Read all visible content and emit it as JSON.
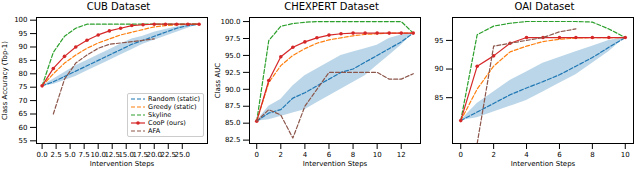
{
  "chart_data": [
    {
      "type": "line",
      "title": "CUB Dataset",
      "x_label": "Intervention Steps",
      "y_label": "Class Accuracy (Top-1)",
      "x": [
        0,
        2,
        4,
        6,
        8,
        10,
        12,
        14,
        16,
        18,
        20,
        22,
        24,
        26,
        28
      ],
      "xlim": [
        -1,
        29.5
      ],
      "xticks": [
        {
          "value": 0,
          "label": "0.0"
        },
        {
          "value": 2.5,
          "label": "2.5"
        },
        {
          "value": 5,
          "label": "5.0"
        },
        {
          "value": 7.5,
          "label": "7.5"
        },
        {
          "value": 10,
          "label": "10.0"
        },
        {
          "value": 12.5,
          "label": "12.5"
        },
        {
          "value": 15,
          "label": "15.0"
        },
        {
          "value": 17.5,
          "label": "17.5"
        },
        {
          "value": 20,
          "label": "20.0"
        },
        {
          "value": 22.5,
          "label": "22.5"
        },
        {
          "value": 25,
          "label": "25.0"
        }
      ],
      "ylim": [
        54,
        101
      ],
      "yticks": [
        55,
        60,
        65,
        70,
        75,
        80,
        85,
        90,
        95,
        100
      ],
      "grid": false,
      "legend": "lower right",
      "series": [
        {
          "name": "Random (static)",
          "color": "#1f77b4",
          "line_style": "dashed",
          "values": [
            75.5,
            77,
            79,
            81,
            83,
            85,
            87,
            89,
            91,
            92.5,
            94,
            95.5,
            97,
            98,
            98.5
          ],
          "lower": [
            75.5,
            76,
            77.5,
            79,
            81,
            83,
            85,
            87,
            89,
            91,
            92.5,
            94,
            95.5,
            97,
            98.5
          ],
          "upper": [
            75.5,
            78,
            80.5,
            83,
            85,
            87,
            89,
            91,
            93,
            94,
            95.5,
            96.5,
            97.5,
            98.3,
            98.5
          ]
        },
        {
          "name": "Greedy (static)",
          "color": "#ff7f0e",
          "line_style": "dashed",
          "values": [
            75.5,
            80,
            84,
            87,
            89.5,
            91.5,
            93,
            94.5,
            95.5,
            96.5,
            97.5,
            98,
            98.3,
            98.5,
            98.5
          ]
        },
        {
          "name": "Skyline",
          "color": "#2ca02c",
          "line_style": "dashed",
          "values": [
            75.5,
            88,
            94,
            97,
            98.5,
            98.5,
            98.5,
            98.5,
            98.5,
            98.5,
            98.5,
            98.5,
            98.5,
            98.5,
            98.5
          ]
        },
        {
          "name": "CooP (ours)",
          "color": "#d62728",
          "line_style": "solid",
          "marker": "circle",
          "values": [
            75.5,
            82,
            86.5,
            90,
            92.5,
            94.5,
            96,
            97,
            98,
            98.3,
            98.5,
            98.5,
            98.5,
            98.5,
            98.5
          ]
        },
        {
          "name": "AFA",
          "color": "#8c564b",
          "line_style": "dashed",
          "values": [
            null,
            65,
            78,
            84,
            87,
            89.5,
            91,
            91.5,
            92,
            92.5,
            93,
            null,
            null,
            null,
            null
          ]
        }
      ]
    },
    {
      "type": "line",
      "title": "CHEXPERT Dataset",
      "x_label": "Intervention Steps",
      "y_label": "Class AUC",
      "x": [
        0,
        1,
        2,
        3,
        4,
        5,
        6,
        7,
        8,
        9,
        10,
        11,
        12,
        13
      ],
      "xlim": [
        -0.6,
        13.6
      ],
      "xticks": [
        0,
        2,
        4,
        6,
        8,
        10,
        12
      ],
      "ylim": [
        82,
        100.6
      ],
      "yticks": [
        82.5,
        {
          "value": 85,
          "label": "85.0"
        },
        87.5,
        {
          "value": 90,
          "label": "90.0"
        },
        92.5,
        {
          "value": 95,
          "label": "95.0"
        },
        97.5,
        {
          "value": 100,
          "label": "100.0"
        }
      ],
      "grid": false,
      "series": [
        {
          "name": "Random (static)",
          "color": "#1f77b4",
          "line_style": "dashed",
          "values": [
            85.3,
            86.5,
            87,
            88.7,
            89.5,
            90.5,
            91.5,
            92.5,
            93,
            94,
            95,
            96,
            97,
            98.3
          ],
          "lower": [
            85.3,
            85.5,
            86,
            86.5,
            87,
            88,
            89,
            90,
            91,
            92,
            93.5,
            95,
            96.5,
            98.3
          ],
          "upper": [
            85.3,
            87.5,
            88.5,
            90.5,
            92,
            93,
            94,
            95,
            95.5,
            96,
            96.5,
            97.5,
            98,
            98.3
          ]
        },
        {
          "name": "Greedy (static)",
          "color": "#ff7f0e",
          "line_style": "dashed",
          "values": [
            85.3,
            91,
            93.5,
            95,
            96,
            96.8,
            97.3,
            97.6,
            97.9,
            98.1,
            98.2,
            98.3,
            98.3,
            98.3
          ]
        },
        {
          "name": "Skyline",
          "color": "#2ca02c",
          "line_style": "dashed",
          "values": [
            85.3,
            97.2,
            99.3,
            99.7,
            99.9,
            100,
            100,
            100,
            100,
            100,
            100,
            100,
            100,
            98.3
          ]
        },
        {
          "name": "CooP (ours)",
          "color": "#d62728",
          "line_style": "solid",
          "marker": "circle",
          "values": [
            85.3,
            91.3,
            94.8,
            96.2,
            97,
            97.6,
            98,
            98.2,
            98.3,
            98.3,
            98.3,
            98.3,
            98.3,
            98.3
          ]
        },
        {
          "name": "AFA",
          "color": "#8c564b",
          "line_style": "dashed",
          "values": [
            85.3,
            87,
            86.2,
            82.8,
            87.5,
            90,
            92.5,
            92.5,
            92.5,
            92.5,
            92.5,
            91.5,
            91.5,
            92.3
          ]
        }
      ]
    },
    {
      "type": "line",
      "title": "OAI Dataset",
      "x_label": "Intervention Steps",
      "y_label": null,
      "x": [
        0,
        1,
        2,
        3,
        4,
        5,
        6,
        7,
        8,
        9,
        10
      ],
      "xlim": [
        -0.5,
        10.5
      ],
      "xticks": [
        0,
        2,
        4,
        6,
        8,
        10
      ],
      "ylim": [
        77,
        99
      ],
      "yticks": [
        85,
        90,
        95
      ],
      "grid": false,
      "series": [
        {
          "name": "Random (static)",
          "color": "#1f77b4",
          "line_style": "dashed",
          "values": [
            81,
            82.5,
            84,
            85.5,
            86.7,
            87.8,
            89,
            90.5,
            92,
            93.8,
            95.5
          ],
          "lower": [
            81,
            81.5,
            82.5,
            83.5,
            84.5,
            86,
            87.5,
            89,
            91,
            93,
            95.5
          ],
          "upper": [
            81,
            84,
            86,
            88,
            89.5,
            91,
            92,
            93,
            94,
            95,
            95.5
          ]
        },
        {
          "name": "Greedy (static)",
          "color": "#ff7f0e",
          "line_style": "dashed",
          "values": [
            81,
            86.5,
            90.5,
            93,
            94,
            94.8,
            95.2,
            95.4,
            95.5,
            95.5,
            95.5
          ]
        },
        {
          "name": "Skyline",
          "color": "#2ca02c",
          "line_style": "dashed",
          "values": [
            81,
            96,
            97.5,
            98,
            98.3,
            98.3,
            98.3,
            98.3,
            98.2,
            97,
            95.5
          ]
        },
        {
          "name": "CooP (ours)",
          "color": "#d62728",
          "line_style": "solid",
          "marker": "circle",
          "values": [
            81,
            90.5,
            92.3,
            94.5,
            95.5,
            95.5,
            95.5,
            95.5,
            95.5,
            95.5,
            95.5
          ]
        },
        {
          "name": "AFA",
          "color": "#8c564b",
          "line_style": "dashed",
          "values": [
            null,
            77,
            94,
            94.5,
            95,
            95.5,
            96.5,
            97,
            null,
            null,
            null
          ]
        }
      ]
    }
  ]
}
